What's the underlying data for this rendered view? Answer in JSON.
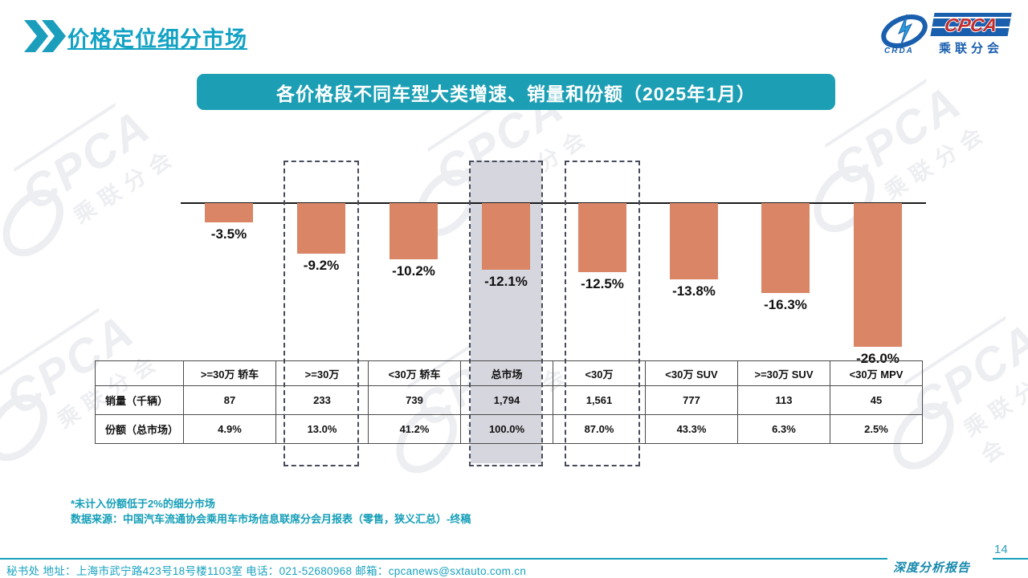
{
  "slide": {
    "title": "价格定位细分市场",
    "banner": "各价格段不同车型大类增速、销量和份额（2025年1月）",
    "page_number": "14",
    "report_label": "深度分析报告",
    "footnote1": "*未计入份额低于2%的细分市场",
    "footnote2": "数据来源：中国汽车流通协会乘用车市场信息联席分会月报表（零售，狭义汇总）-终稿",
    "footer": "秘书处  地址：上海市武宁路423号18号楼1103室 电话：021-52680968   邮箱：cpcanews@sxtauto.com.cn",
    "logo": {
      "cpca": "CPCA",
      "sub": "乘联分会",
      "crda": "CRDA"
    },
    "watermark": {
      "text": "CPCA",
      "subtext": "乘联分会"
    },
    "colors": {
      "accent_teal": "#1C9FB4",
      "bar_salmon": "#D98566",
      "gray_highlight": "#D6D6DE"
    }
  },
  "chart_data": {
    "type": "bar",
    "title": "各价格段不同车型大类增速、销量和份额（2025年1月）",
    "categories": [
      ">=30万 轿车",
      ">=30万",
      "<30万 轿车",
      "总市场",
      "<30万",
      "<30万 SUV",
      ">=30万 SUV",
      "<30万 MPV"
    ],
    "growth_labels": [
      "-3.5%",
      "-9.2%",
      "-10.2%",
      "-12.1%",
      "-12.5%",
      "-13.8%",
      "-16.3%",
      "-26.0%"
    ],
    "series": [
      {
        "name": "增速",
        "unit": "%",
        "values": [
          -3.5,
          -9.2,
          -10.2,
          -12.1,
          -12.5,
          -13.8,
          -16.3,
          -26.0
        ]
      },
      {
        "name": "销量（千辆）",
        "values": [
          "87",
          "233",
          "739",
          "1,794",
          "1,561",
          "777",
          "113",
          "45"
        ]
      },
      {
        "name": "份额（总市场）",
        "values": [
          "4.9%",
          "13.0%",
          "41.2%",
          "100.0%",
          "87.0%",
          "43.3%",
          "6.3%",
          "2.5%"
        ]
      }
    ],
    "row_headers": [
      "销量（千辆）",
      "份额（总市场）"
    ],
    "dashed_highlight_indices": [
      1,
      4
    ],
    "gray_highlight_index": 3,
    "bar_color": "#D98566",
    "ylim": [
      -30,
      5
    ],
    "legend": "none",
    "grid": false
  }
}
